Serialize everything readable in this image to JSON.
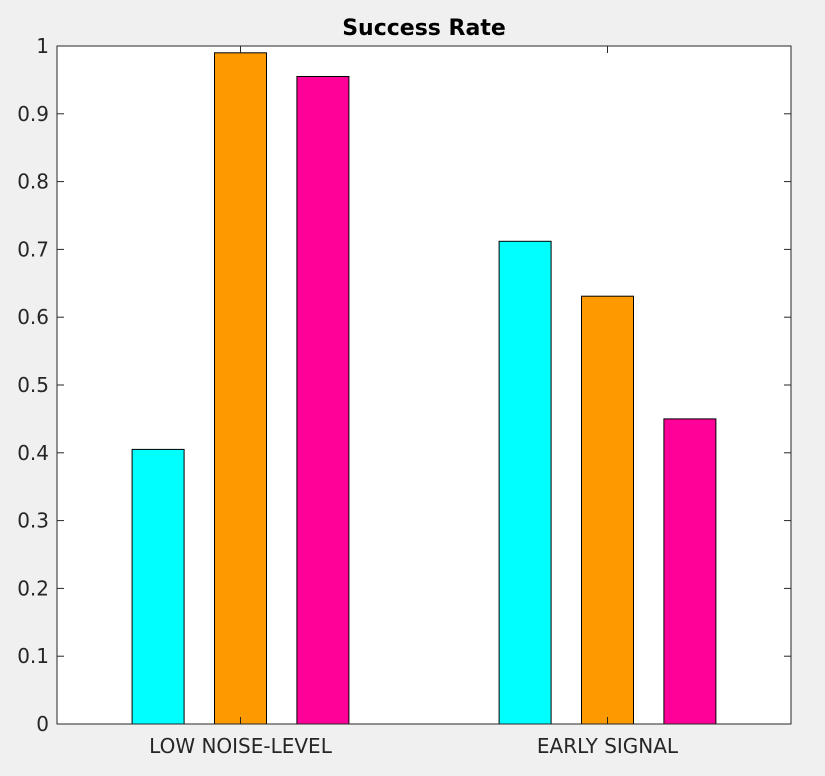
{
  "chart_data": {
    "type": "bar",
    "title": "Success Rate",
    "xlabel": "",
    "ylabel": "",
    "categories": [
      "LOW NOISE-LEVEL",
      "EARLY SIGNAL"
    ],
    "series": [
      {
        "color": "#00ffff",
        "values": [
          0.405,
          0.712
        ]
      },
      {
        "color": "#ff9900",
        "values": [
          0.99,
          0.631
        ]
      },
      {
        "color": "#ff0099",
        "values": [
          0.955,
          0.45
        ]
      }
    ],
    "ylim": [
      0,
      1
    ],
    "xlim": [
      0.5,
      2.5
    ],
    "yticks": [
      0,
      0.1,
      0.2,
      0.3,
      0.4,
      0.5,
      0.6,
      0.7,
      0.8,
      0.9,
      1
    ],
    "ytick_labels": [
      "0",
      "0.1",
      "0.2",
      "0.3",
      "0.4",
      "0.5",
      "0.6",
      "0.7",
      "0.8",
      "0.9",
      "1"
    ],
    "grid": false,
    "legend": "none"
  }
}
